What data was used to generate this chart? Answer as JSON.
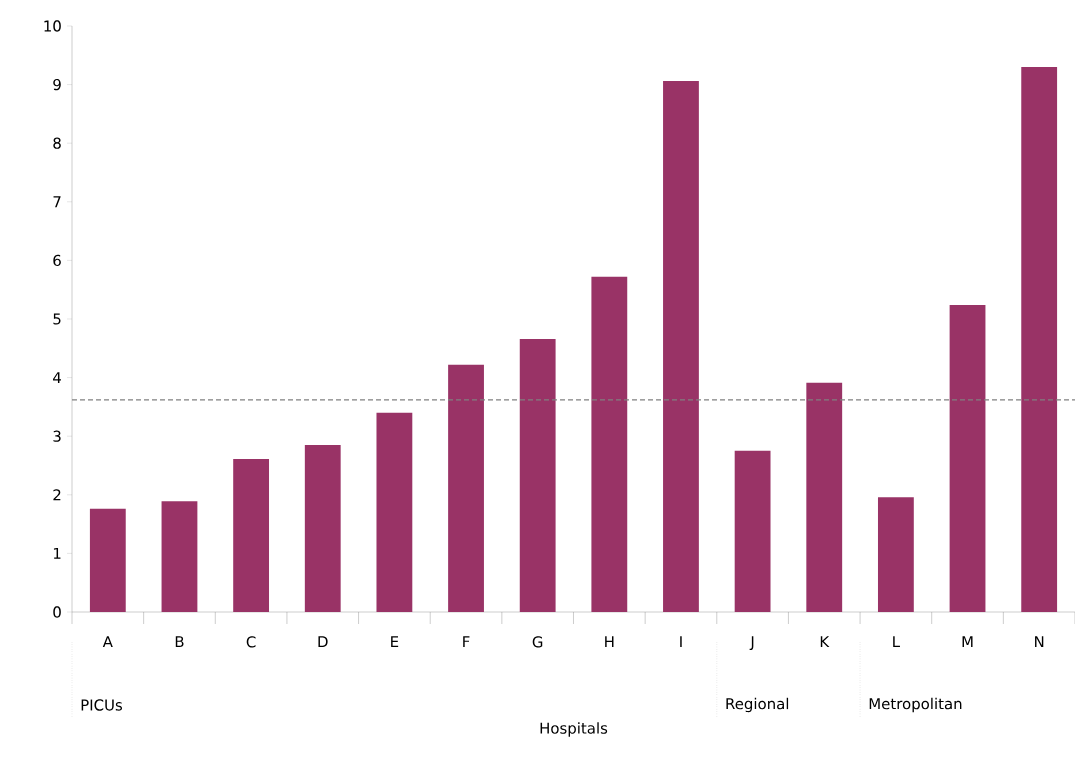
{
  "chart_data": {
    "type": "bar",
    "xlabel": "Hospitals",
    "categories": [
      "A",
      "B",
      "C",
      "D",
      "E",
      "F",
      "G",
      "H",
      "I",
      "J",
      "K",
      "L",
      "M",
      "N"
    ],
    "values": [
      1.76,
      1.89,
      2.61,
      2.85,
      3.4,
      4.22,
      4.66,
      5.72,
      9.06,
      2.75,
      3.91,
      1.96,
      5.24,
      9.3
    ],
    "color": "#993366",
    "ylim": [
      0,
      10
    ],
    "yticks": [
      0,
      1,
      2,
      3,
      4,
      5,
      6,
      7,
      8,
      9,
      10
    ],
    "grid": false,
    "ref_lines": [
      {
        "axis": "y",
        "value": 3.62,
        "color": "#808080",
        "line_style": "dashed"
      }
    ],
    "annotations": [
      "PICUs",
      "Regional",
      "Metropolitan"
    ]
  }
}
